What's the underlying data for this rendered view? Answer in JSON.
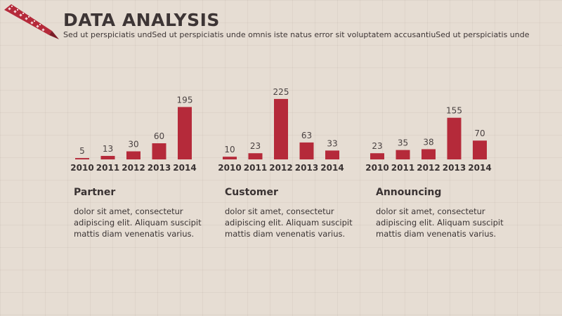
{
  "header": {
    "title": "DATA  ANALYSIS",
    "subtitle": "Sed ut perspiciatis undSed ut perspiciatis unde omnis iste natus error sit voluptatem accusantiuSed ut perspiciatis unde"
  },
  "colors": {
    "accent": "#b52a3a",
    "background": "#e6ddd3",
    "text": "#3d3535"
  },
  "chart_data": [
    {
      "type": "bar",
      "categories": [
        "2010",
        "2011",
        "2012",
        "2013",
        "2014"
      ],
      "values": [
        5,
        13,
        30,
        60,
        195
      ],
      "title": "",
      "xlabel": "",
      "ylabel": "",
      "ylim": [
        0,
        230
      ],
      "grid": false
    },
    {
      "type": "bar",
      "categories": [
        "2010",
        "2011",
        "2012",
        "2013",
        "2014"
      ],
      "values": [
        10,
        23,
        225,
        63,
        33
      ],
      "title": "",
      "xlabel": "",
      "ylabel": "",
      "ylim": [
        0,
        230
      ],
      "grid": false
    },
    {
      "type": "bar",
      "categories": [
        "2010",
        "2011",
        "2012",
        "2013",
        "2014"
      ],
      "values": [
        23,
        35,
        38,
        155,
        70
      ],
      "title": "",
      "xlabel": "",
      "ylabel": "",
      "ylim": [
        0,
        230
      ],
      "grid": false
    }
  ],
  "sections": [
    {
      "title": "Partner",
      "body": "dolor sit amet, consectetur adipiscing elit. Aliquam suscipit mattis diam venenatis varius."
    },
    {
      "title": "Customer",
      "body": "dolor sit amet, consectetur adipiscing elit. Aliquam suscipit mattis diam venenatis varius."
    },
    {
      "title": "Announcing",
      "body": "dolor sit amet, consectetur adipiscing elit. Aliquam suscipit mattis diam venenatis varius."
    }
  ]
}
